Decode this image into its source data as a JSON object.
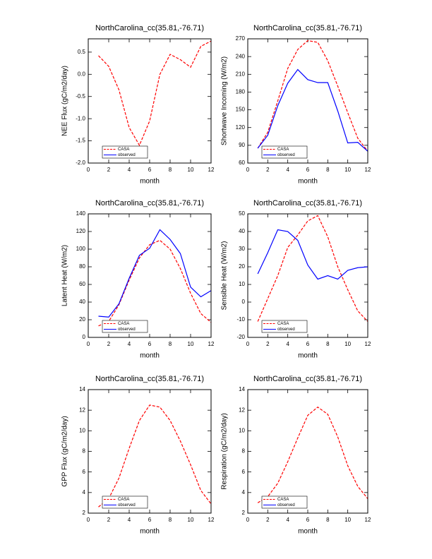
{
  "chart_data": [
    {
      "type": "line",
      "title": "NorthCarolina_cc(35.81,-76.71)",
      "xlabel": "month",
      "ylabel": "NEE Flux (gC/m2/day)",
      "x": [
        1,
        2,
        3,
        4,
        5,
        6,
        7,
        8,
        9,
        10,
        11,
        12
      ],
      "xlim": [
        0,
        12
      ],
      "xticks": [
        0,
        2,
        4,
        6,
        8,
        10,
        12
      ],
      "ylim": [
        -2.0,
        0.8
      ],
      "yticks": [
        {
          "value": -2.0,
          "label": "-2.0"
        },
        -1.5,
        {
          "value": -1.0,
          "label": "-1.0"
        },
        -0.5,
        {
          "value": 0.0,
          "label": "0.0"
        },
        0.5
      ],
      "legend": "lower left",
      "series": [
        {
          "name": "CASA",
          "color": "#ff0000",
          "dash": true,
          "values": [
            0.42,
            0.18,
            -0.35,
            -1.2,
            -1.6,
            -1.05,
            0.0,
            0.45,
            0.33,
            0.16,
            0.63,
            0.75
          ]
        },
        {
          "name": "observed",
          "color": "#0000ff",
          "dash": false,
          "values": [
            null,
            null,
            null,
            null,
            null,
            null,
            null,
            null,
            null,
            null,
            null,
            null
          ]
        }
      ]
    },
    {
      "type": "line",
      "title": "NorthCarolina_cc(35.81,-76.71)",
      "xlabel": "month",
      "ylabel": "Shortwave Incoming (W/m2)",
      "x": [
        1,
        2,
        3,
        4,
        5,
        6,
        7,
        8,
        9,
        10,
        11,
        12
      ],
      "xlim": [
        0,
        12
      ],
      "xticks": [
        0,
        2,
        4,
        6,
        8,
        10,
        12
      ],
      "ylim": [
        60,
        270
      ],
      "yticks": [
        60,
        90,
        120,
        150,
        180,
        210,
        240,
        270
      ],
      "legend": "lower left",
      "series": [
        {
          "name": "CASA",
          "color": "#ff0000",
          "dash": true,
          "values": [
            85,
            112,
            165,
            220,
            252,
            267,
            264,
            233,
            190,
            145,
            102,
            80
          ]
        },
        {
          "name": "observed",
          "color": "#0000ff",
          "dash": false,
          "values": [
            85,
            107,
            157,
            195,
            218,
            201,
            196,
            196,
            148,
            94,
            95,
            80
          ]
        }
      ]
    },
    {
      "type": "line",
      "title": "NorthCarolina_cc(35.81,-76.71)",
      "xlabel": "month",
      "ylabel": "Latent Heat (W/m2)",
      "x": [
        1,
        2,
        3,
        4,
        5,
        6,
        7,
        8,
        9,
        10,
        11,
        12
      ],
      "xlim": [
        0,
        12
      ],
      "xticks": [
        0,
        2,
        4,
        6,
        8,
        10,
        12
      ],
      "ylim": [
        0,
        140
      ],
      "yticks": [
        0,
        20,
        40,
        60,
        80,
        100,
        120,
        140
      ],
      "legend": "lower left",
      "series": [
        {
          "name": "CASA",
          "color": "#ff0000",
          "dash": true,
          "values": [
            13,
            18,
            37,
            65,
            90,
            105,
            110,
            100,
            78,
            50,
            27,
            17
          ]
        },
        {
          "name": "observed",
          "color": "#0000ff",
          "dash": false,
          "values": [
            24,
            23,
            38,
            67,
            93,
            101,
            122,
            111,
            95,
            57,
            46,
            53
          ]
        }
      ]
    },
    {
      "type": "line",
      "title": "NorthCarolina_cc(35.81,-76.71)",
      "xlabel": "month",
      "ylabel": "Sensible Heat (W/m2)",
      "x": [
        1,
        2,
        3,
        4,
        5,
        6,
        7,
        8,
        9,
        10,
        11,
        12
      ],
      "xlim": [
        0,
        12
      ],
      "xticks": [
        0,
        2,
        4,
        6,
        8,
        10,
        12
      ],
      "ylim": [
        -20,
        50
      ],
      "yticks": [
        -20,
        -10,
        0,
        10,
        20,
        30,
        40,
        50
      ],
      "legend": "lower left",
      "series": [
        {
          "name": "CASA",
          "color": "#ff0000",
          "dash": true,
          "values": [
            -11,
            2,
            15,
            31,
            38,
            46,
            49,
            37,
            20,
            7,
            -5,
            -11
          ]
        },
        {
          "name": "observed",
          "color": "#0000ff",
          "dash": false,
          "values": [
            16,
            28,
            41,
            40,
            35,
            21,
            13,
            15,
            13,
            18,
            19.5,
            20
          ]
        }
      ]
    },
    {
      "type": "line",
      "title": "NorthCarolina_cc(35.81,-76.71)",
      "xlabel": "month",
      "ylabel": "GPP Flux (gC/m2/day)",
      "x": [
        1,
        2,
        3,
        4,
        5,
        6,
        7,
        8,
        9,
        10,
        11,
        12
      ],
      "xlim": [
        0,
        12
      ],
      "xticks": [
        0,
        2,
        4,
        6,
        8,
        10,
        12
      ],
      "ylim": [
        2,
        14
      ],
      "yticks": [
        2,
        4,
        6,
        8,
        10,
        12,
        14
      ],
      "legend": "lower left",
      "series": [
        {
          "name": "CASA",
          "color": "#ff0000",
          "dash": true,
          "values": [
            2.6,
            3.4,
            5.4,
            8.3,
            11,
            12.5,
            12.3,
            11,
            9,
            6.7,
            4.2,
            2.9
          ]
        },
        {
          "name": "observed",
          "color": "#0000ff",
          "dash": false,
          "values": [
            null,
            null,
            null,
            null,
            null,
            null,
            null,
            null,
            null,
            null,
            null,
            null
          ]
        }
      ]
    },
    {
      "type": "line",
      "title": "NorthCarolina_cc(35.81,-76.71)",
      "xlabel": "month",
      "ylabel": "Respiration (gC/m2/day)",
      "x": [
        1,
        2,
        3,
        4,
        5,
        6,
        7,
        8,
        9,
        10,
        11,
        12
      ],
      "xlim": [
        0,
        12
      ],
      "xticks": [
        0,
        2,
        4,
        6,
        8,
        10,
        12
      ],
      "ylim": [
        2,
        14
      ],
      "yticks": [
        2,
        4,
        6,
        8,
        10,
        12,
        14
      ],
      "legend": "lower left",
      "series": [
        {
          "name": "CASA",
          "color": "#ff0000",
          "dash": true,
          "values": [
            3.0,
            3.6,
            4.9,
            7.0,
            9.3,
            11.5,
            12.3,
            11.6,
            9.4,
            6.6,
            4.6,
            3.4
          ]
        },
        {
          "name": "observed",
          "color": "#0000ff",
          "dash": false,
          "values": [
            null,
            null,
            null,
            null,
            null,
            null,
            null,
            null,
            null,
            null,
            null,
            null
          ]
        }
      ]
    }
  ]
}
